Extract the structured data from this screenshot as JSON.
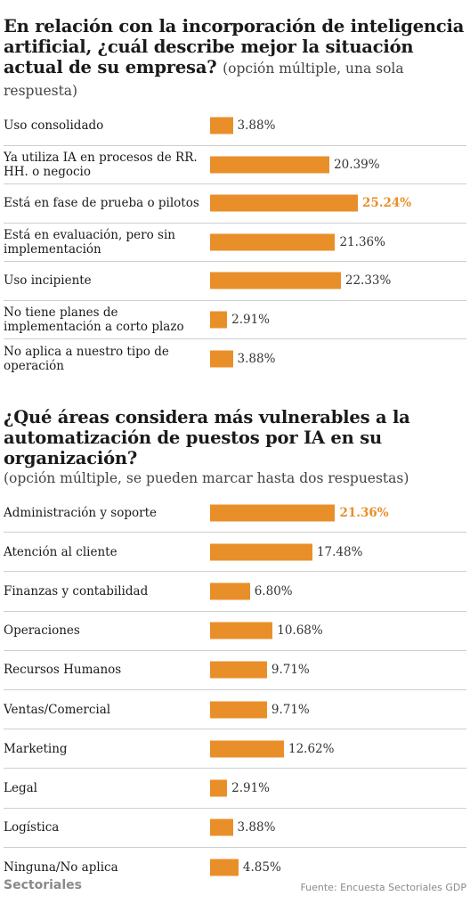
{
  "chart_data": [
    {
      "type": "bar",
      "title": "En relación con la incorporación de inteligencia artificial, ¿cuál describe mejor la situación actual de su empresa?",
      "subtitle": "(opción múltiple, una sola respuesta)",
      "categories": [
        "Uso consolidado",
        "Ya utiliza IA en procesos de RR. HH. o negocio",
        "Está en fase de prueba o pilotos",
        "Está en evaluación, pero sin implementación",
        "Uso incipiente",
        "No tiene planes de implementación a corto plazo",
        "No aplica a nuestro tipo de operación"
      ],
      "values": [
        3.88,
        20.39,
        25.24,
        21.36,
        22.33,
        2.91,
        3.88
      ],
      "value_labels": [
        "3.88%",
        "20.39%",
        "25.24%",
        "21.36%",
        "22.33%",
        "2.91%",
        "3.88%"
      ],
      "highlight_index": 2,
      "xlim": [
        0,
        25.24
      ],
      "bar_color": "#e98f2a",
      "grid": false
    },
    {
      "type": "bar",
      "title": "¿Qué áreas considera más vulnerables a la automatización de puestos por IA en su organización?",
      "subtitle": "(opción múltiple, se pueden marcar hasta dos respuestas)",
      "categories": [
        "Administración y soporte",
        "Atención al cliente",
        "Finanzas y contabilidad",
        "Operaciones",
        "Recursos Humanos",
        "Ventas/Comercial",
        "Marketing",
        "Legal",
        "Logística",
        "Ninguna/No aplica"
      ],
      "values": [
        21.36,
        17.48,
        6.8,
        10.68,
        9.71,
        9.71,
        12.62,
        2.91,
        3.88,
        4.85
      ],
      "value_labels": [
        "21.36%",
        "17.48%",
        "6.80%",
        "10.68%",
        "9.71%",
        "9.71%",
        "12.62%",
        "2.91%",
        "3.88%",
        "4.85%"
      ],
      "highlight_index": 0,
      "xlim": [
        0,
        25.24
      ],
      "bar_color": "#e98f2a",
      "grid": false
    }
  ],
  "footer": {
    "brand": "Sectoriales",
    "source": "Fuente: Encuesta Sectoriales GDP"
  }
}
